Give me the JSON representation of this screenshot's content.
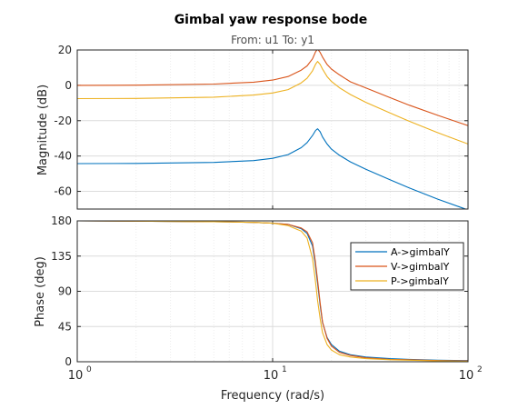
{
  "chart_data": {
    "type": "line",
    "title": "Gimbal yaw response bode",
    "subtitle": "From: u1  To: y1",
    "xlabel": "Frequency  (rad/s)",
    "xscale": "log",
    "xlim": [
      1,
      100
    ],
    "x_ticks": [
      {
        "value": 1,
        "base": "10",
        "exp": "0"
      },
      {
        "value": 10,
        "base": "10",
        "exp": "1"
      },
      {
        "value": 100,
        "base": "10",
        "exp": "2"
      }
    ],
    "grid": true,
    "legend_position": "right",
    "colors": {
      "A->gimbalY": "#0072BD",
      "V->gimbalY": "#D95319",
      "P->gimbalY": "#EDB120"
    },
    "panels": [
      {
        "name": "magnitude",
        "ylabel": "Magnitude (dB)",
        "ylim": [
          -70,
          20
        ],
        "yticks": [
          20,
          0,
          -20,
          -40,
          -60
        ],
        "series": [
          {
            "name": "A->gimbalY",
            "x": [
              1,
              2,
              5,
              8,
              10,
              12,
              14,
              15,
              16,
              16.6,
              17,
              17.5,
              18,
              19,
              20,
              22,
              25,
              30,
              40,
              50,
              70,
              100
            ],
            "values": [
              -44.3,
              -44.2,
              -43.6,
              -42.6,
              -41.3,
              -39.2,
              -35.3,
              -32.4,
              -28.4,
              -25.5,
              -24.6,
              -26.3,
              -29.2,
              -33.2,
              -36.1,
              -39.6,
              -43.3,
              -47.5,
              -53.5,
              -58.0,
              -64.4,
              -70.5
            ]
          },
          {
            "name": "V->gimbalY",
            "x": [
              1,
              2,
              5,
              8,
              10,
              12,
              14,
              15,
              16,
              16.6,
              17,
              17.5,
              18,
              19,
              20,
              22,
              25,
              30,
              40,
              50,
              70,
              100
            ],
            "values": [
              0,
              0.1,
              0.7,
              1.8,
              3.0,
              5.0,
              8.6,
              11.0,
              15.0,
              19.0,
              20.5,
              18.6,
              16.0,
              11.8,
              9.2,
              5.9,
              2.0,
              -1.5,
              -7.0,
              -11.2,
              -17.0,
              -22.8
            ]
          },
          {
            "name": "P->gimbalY",
            "x": [
              1,
              2,
              5,
              8,
              10,
              12,
              14,
              15,
              16,
              16.6,
              17,
              17.5,
              18,
              19,
              20,
              22,
              25,
              30,
              40,
              50,
              70,
              100
            ],
            "values": [
              -7.5,
              -7.4,
              -6.7,
              -5.5,
              -4.3,
              -2.4,
              1.4,
              4.0,
              8.2,
              12.0,
              13.5,
              11.8,
              9.2,
              5.0,
              2.2,
              -1.4,
              -5.2,
              -9.6,
              -15.7,
              -20.3,
              -26.8,
              -33.2
            ]
          }
        ]
      },
      {
        "name": "phase",
        "ylabel": "Phase (deg)",
        "ylim": [
          0,
          180
        ],
        "yticks": [
          180,
          135,
          90,
          45,
          0
        ],
        "series": [
          {
            "name": "A->gimbalY",
            "x": [
              1,
              2,
              5,
              8,
              10,
              12,
              14,
              15,
              16,
              16.5,
              17,
              17.5,
              18,
              19,
              20,
              22,
              25,
              30,
              40,
              50,
              70,
              100
            ],
            "values": [
              180,
              179.6,
              179,
              178,
              177,
              175.5,
              170,
              164,
              148,
              126,
              100,
              72,
              50,
              31,
              22,
              13.5,
              9,
              6,
              4,
              3,
              2,
              1.5
            ]
          },
          {
            "name": "V->gimbalY",
            "x": [
              1,
              2,
              5,
              8,
              10,
              12,
              14,
              15,
              16,
              16.5,
              17,
              17.5,
              18,
              19,
              20,
              22,
              25,
              30,
              40,
              50,
              70,
              100
            ],
            "values": [
              180,
              179.6,
              179,
              178,
              177,
              175.5,
              171,
              166,
              152,
              130,
              104,
              75,
              51,
              30,
              20,
              12,
              8,
              5,
              3,
              2.5,
              1.5,
              1
            ]
          },
          {
            "name": "P->gimbalY",
            "x": [
              1,
              2,
              5,
              8,
              10,
              12,
              14,
              15,
              16,
              16.5,
              17,
              17.5,
              18,
              19,
              20,
              22,
              25,
              30,
              40,
              50,
              70,
              100
            ],
            "values": [
              180,
              179.6,
              179,
              178,
              177,
              174,
              167,
              158,
              132,
              106,
              78,
              55,
              37,
              22,
              15,
              9,
              6,
              4,
              2.5,
              2,
              1,
              0.5
            ]
          }
        ]
      }
    ]
  }
}
